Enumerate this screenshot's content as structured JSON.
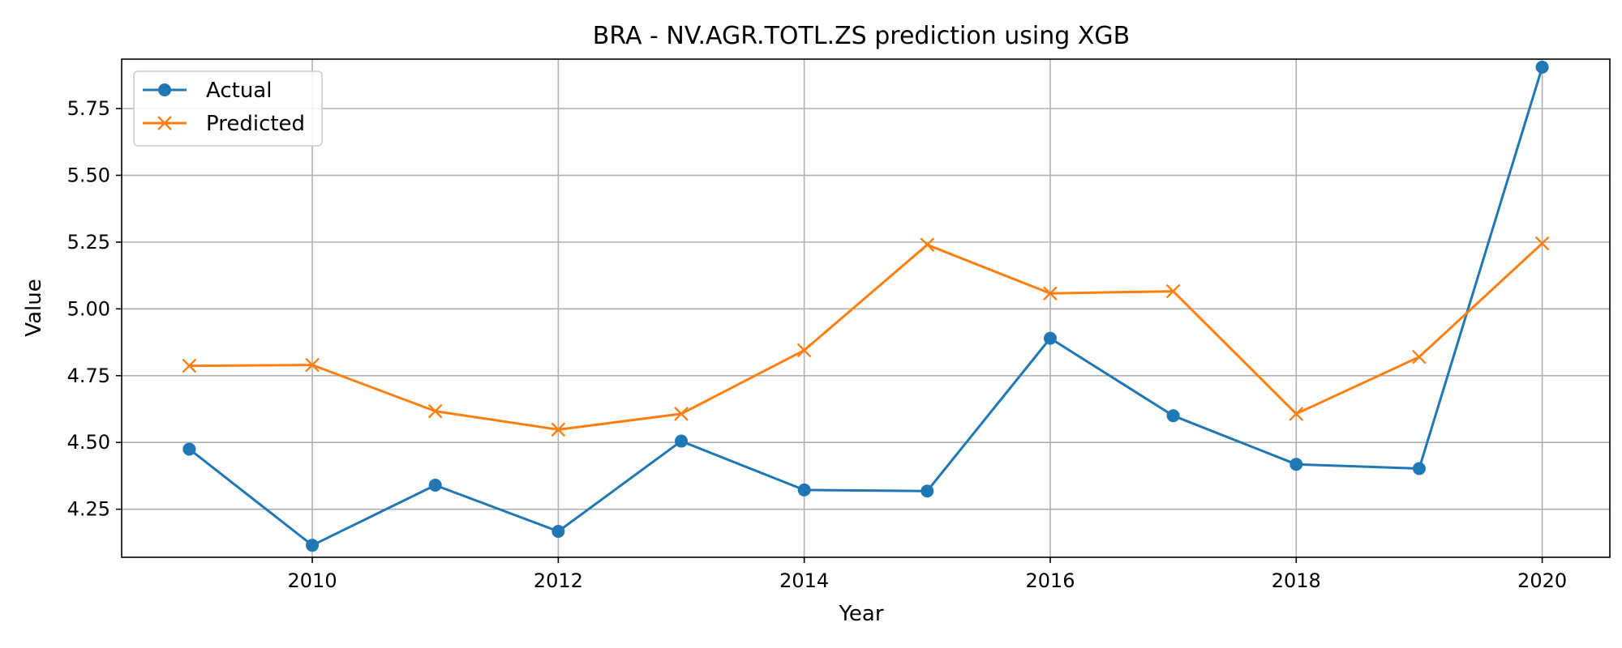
{
  "chart_data": {
    "type": "line",
    "title": "BRA - NV.AGR.TOTL.ZS prediction using XGB",
    "xlabel": "Year",
    "ylabel": "Value",
    "x": [
      2009,
      2010,
      2011,
      2012,
      2013,
      2014,
      2015,
      2016,
      2017,
      2018,
      2019,
      2020
    ],
    "xlim": [
      2008.45,
      2020.55
    ],
    "ylim": [
      4.07,
      5.935
    ],
    "xticks": [
      2010,
      2012,
      2014,
      2016,
      2018,
      2020
    ],
    "yticks": [
      4.25,
      4.5,
      4.75,
      5.0,
      5.25,
      5.5,
      5.75
    ],
    "xtick_labels": [
      "2010",
      "2012",
      "2014",
      "2016",
      "2018",
      "2020"
    ],
    "ytick_labels": [
      "4.25",
      "4.50",
      "4.75",
      "5.00",
      "5.25",
      "5.50",
      "5.75"
    ],
    "grid": true,
    "legend_position": "top-left",
    "series": [
      {
        "name": "Actual",
        "color": "#1f77b4",
        "marker": "circle",
        "values": [
          4.475,
          4.115,
          4.34,
          4.167,
          4.505,
          4.322,
          4.318,
          4.89,
          4.6,
          4.418,
          4.402,
          5.905
        ]
      },
      {
        "name": "Predicted",
        "color": "#ff7f0e",
        "marker": "x",
        "values": [
          4.787,
          4.79,
          4.617,
          4.548,
          4.607,
          4.845,
          5.24,
          5.058,
          5.066,
          4.607,
          4.82,
          5.245
        ]
      }
    ]
  }
}
